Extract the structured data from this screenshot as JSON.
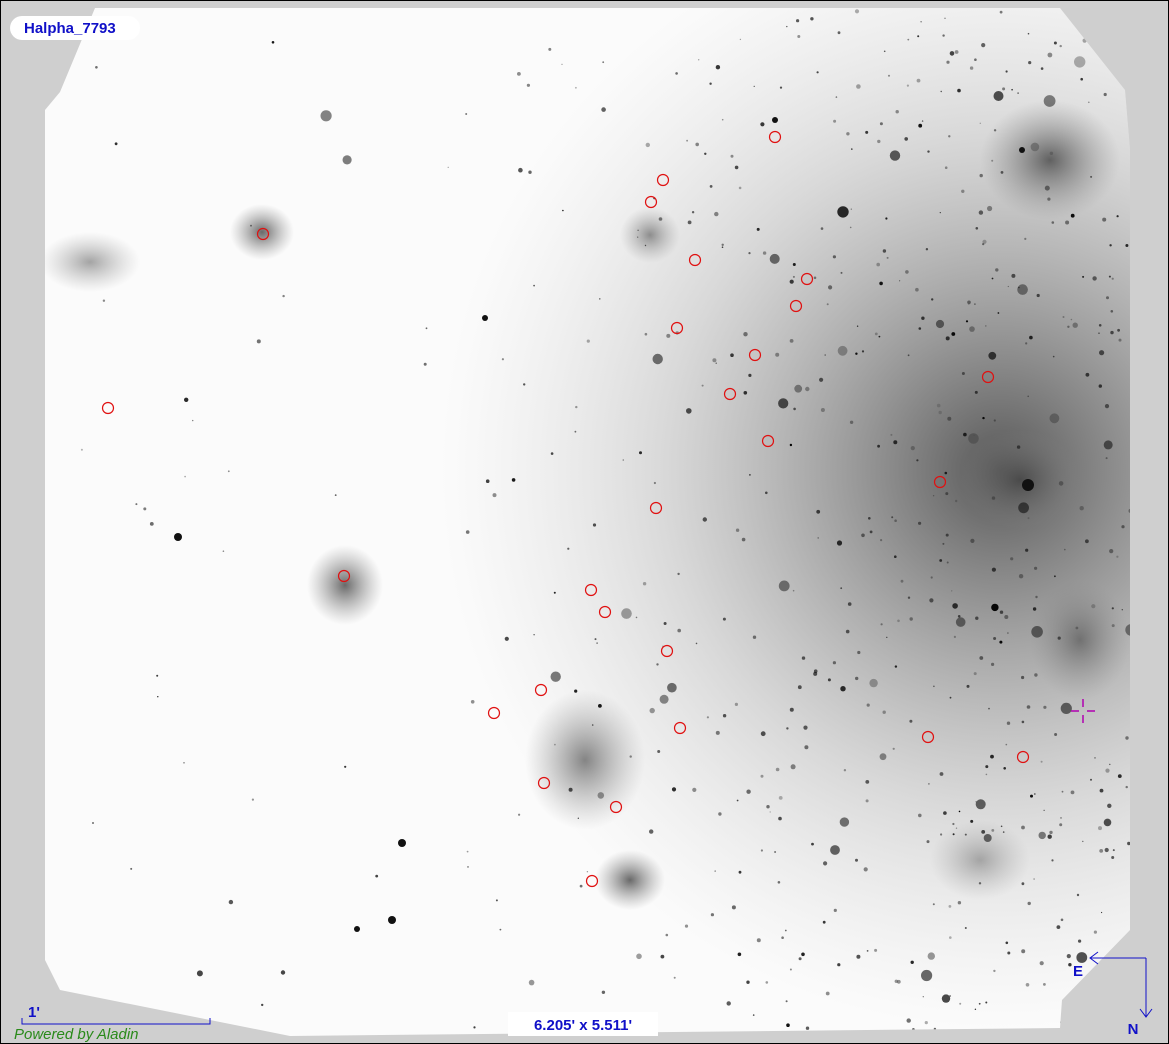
{
  "title": "Halpha_7793",
  "scale_label": "1'",
  "credit": "Powered by Aladin",
  "field_size": "6.205' x 5.511'",
  "compass": {
    "east": "E",
    "north": "N"
  }
}
